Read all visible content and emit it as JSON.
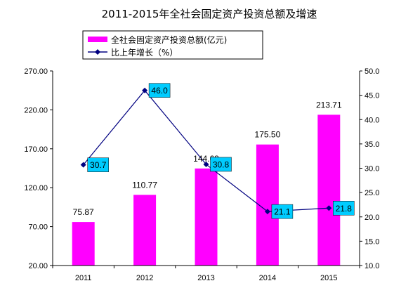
{
  "chart_data": {
    "type": "bar",
    "title": "2011-2015年全社会固定资产投资总额及增速",
    "categories": [
      "2011",
      "2012",
      "2013",
      "2014",
      "2015"
    ],
    "series": [
      {
        "name": "全社会固定资产投资总额(亿元)",
        "type": "bar",
        "axis": "left",
        "color": "#ff00ff",
        "values": [
          75.87,
          110.77,
          144.68,
          175.5,
          213.71
        ],
        "labels": [
          "75.87",
          "110.77",
          "144.68",
          "175.50",
          "213.71"
        ]
      },
      {
        "name": "比上年增长（%）",
        "type": "line",
        "axis": "right",
        "color": "#000080",
        "label_bg": "#00ccff",
        "values": [
          30.7,
          46.0,
          30.8,
          21.1,
          21.8
        ],
        "labels": [
          "30.7",
          "46.0",
          "30.8",
          "21.1",
          "21.8"
        ]
      }
    ],
    "y_left": {
      "range": [
        20,
        270
      ],
      "ticks": [
        "20.00",
        "70.00",
        "120.00",
        "170.00",
        "220.00",
        "270.00"
      ]
    },
    "y_right": {
      "range": [
        10,
        50
      ],
      "ticks": [
        "10.0",
        "15.0",
        "20.0",
        "25.0",
        "30.0",
        "35.0",
        "40.0",
        "45.0",
        "50.0"
      ]
    },
    "grid": false,
    "legend_position": "top-center"
  }
}
